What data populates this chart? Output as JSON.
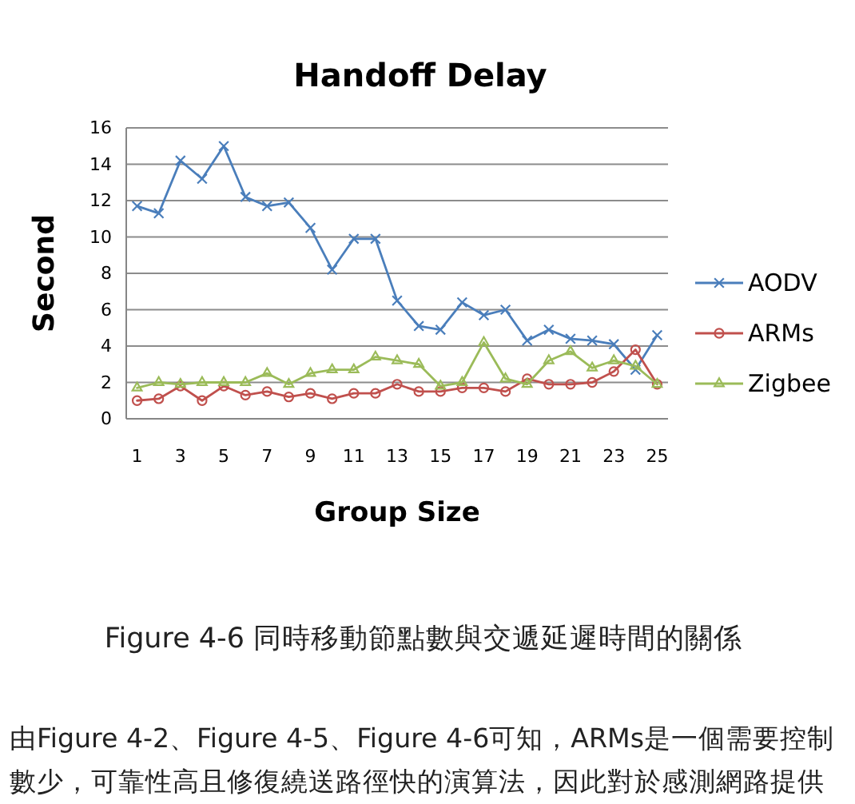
{
  "chart_data": {
    "type": "line",
    "title": "Handoff Delay",
    "xlabel": "Group Size",
    "ylabel": "Second",
    "x": [
      1,
      2,
      3,
      4,
      5,
      6,
      7,
      8,
      9,
      10,
      11,
      12,
      13,
      14,
      15,
      16,
      17,
      18,
      19,
      20,
      21,
      22,
      23,
      24,
      25
    ],
    "xlim": [
      0.5,
      25.5
    ],
    "xticks": [
      1,
      3,
      5,
      7,
      9,
      11,
      13,
      15,
      17,
      19,
      21,
      23,
      25
    ],
    "series": [
      {
        "name": "AODV",
        "color": "#4a7ebb",
        "marker": "cross",
        "values": [
          11.7,
          11.3,
          14.2,
          13.2,
          15.0,
          12.2,
          11.7,
          11.9,
          10.5,
          8.2,
          9.9,
          9.9,
          6.5,
          5.1,
          4.9,
          6.4,
          5.7,
          6.0,
          4.3,
          4.9,
          4.4,
          4.3,
          4.1,
          2.7,
          4.6
        ]
      },
      {
        "name": "ARMs",
        "color": "#c0504d",
        "marker": "circle",
        "values": [
          1.0,
          1.1,
          1.8,
          1.0,
          1.8,
          1.3,
          1.5,
          1.2,
          1.4,
          1.1,
          1.4,
          1.4,
          1.9,
          1.5,
          1.5,
          1.7,
          1.7,
          1.5,
          2.2,
          1.9,
          1.9,
          2.0,
          2.6,
          3.8,
          1.9
        ]
      },
      {
        "name": "Zigbee",
        "color": "#9bbb59",
        "marker": "triangle",
        "values": [
          1.7,
          2.0,
          1.9,
          2.0,
          2.0,
          2.0,
          2.5,
          1.9,
          2.5,
          2.7,
          2.7,
          3.4,
          3.2,
          3.0,
          1.8,
          2.0,
          4.2,
          2.2,
          1.9,
          3.2,
          3.7,
          2.8,
          3.2,
          2.9,
          1.9
        ]
      }
    ],
    "ylim": [
      0,
      16
    ],
    "yticks": [
      0,
      2,
      4,
      6,
      8,
      10,
      12,
      14,
      16
    ],
    "grid": "y",
    "legend": "right",
    "annotations": [
      "Figure 4-6 同時移動節點數與交遞延遲時間的關係",
      "由Figure 4-2、Figure 4-5、Figure 4-6可知，ARMs是一個需要控制",
      "數少，可靠性高且修復繞送路徑快的演算法，因此對於感測網路提供"
    ]
  }
}
